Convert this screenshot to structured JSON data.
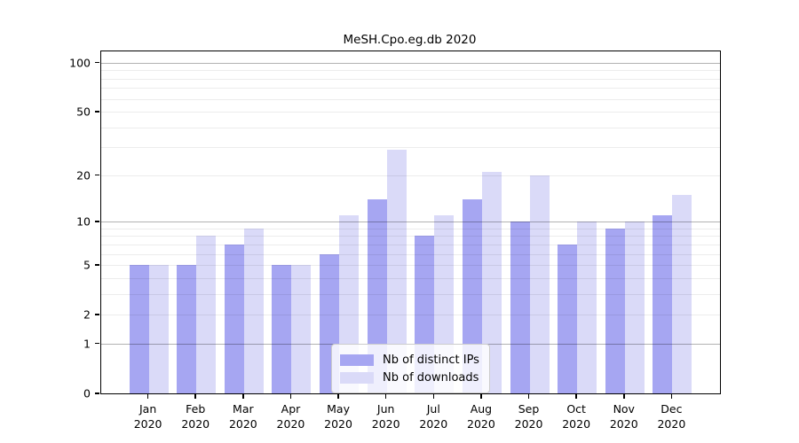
{
  "figure": {
    "title": "MeSH.Cpo.eg.db 2020"
  },
  "legend": {
    "entries": [
      {
        "label": "Nb of distinct IPs",
        "color": "#a6a6f2"
      },
      {
        "label": "Nb of downloads",
        "color": "#dadaf8"
      }
    ]
  },
  "chart_data": {
    "type": "bar",
    "title": "MeSH.Cpo.eg.db 2020",
    "categories": [
      "Jan 2020",
      "Feb 2020",
      "Mar 2020",
      "Apr 2020",
      "May 2020",
      "Jun 2020",
      "Jul 2020",
      "Aug 2020",
      "Sep 2020",
      "Oct 2020",
      "Nov 2020",
      "Dec 2020"
    ],
    "x_tick_line1": [
      "Jan",
      "Feb",
      "Mar",
      "Apr",
      "May",
      "Jun",
      "Jul",
      "Aug",
      "Sep",
      "Oct",
      "Nov",
      "Dec"
    ],
    "x_tick_line2": "2020",
    "series": [
      {
        "name": "Nb of distinct IPs",
        "color": "#a6a6f2",
        "values": [
          5,
          5,
          7,
          5,
          6,
          14,
          8,
          14,
          10,
          7,
          9,
          11
        ]
      },
      {
        "name": "Nb of downloads",
        "color": "#dadaf8",
        "values": [
          5,
          8,
          9,
          5,
          11,
          29,
          11,
          21,
          20,
          10,
          10,
          15
        ]
      }
    ],
    "xlabel": "",
    "ylabel": "",
    "yscale": "log1p",
    "ylim": [
      0,
      115
    ],
    "y_tick_values": [
      100,
      50,
      20,
      10,
      5,
      2,
      1,
      0
    ],
    "y_tick_labels": [
      "100",
      "50",
      "20",
      "10",
      "5",
      "2",
      "1",
      "0"
    ],
    "gridlines_major": [
      1,
      10,
      100
    ],
    "gridlines_minor": [
      2,
      3,
      4,
      5,
      6,
      7,
      8,
      9,
      20,
      30,
      40,
      50,
      60,
      70,
      80,
      90
    ],
    "grid": true,
    "legend_position": "lower center"
  }
}
